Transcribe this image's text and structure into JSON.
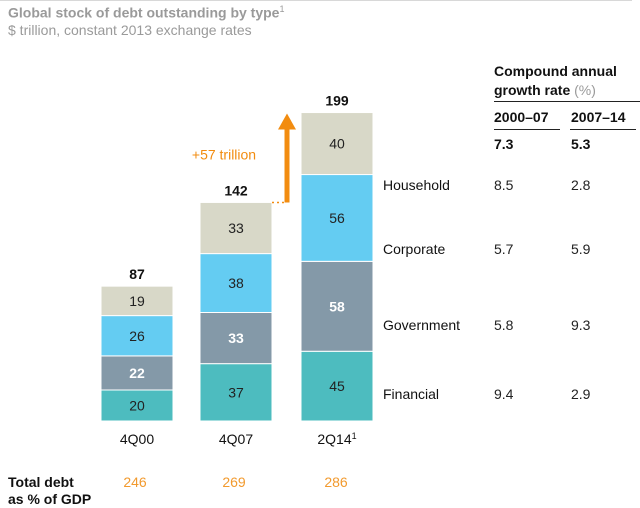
{
  "title": "Global stock of debt outstanding by type",
  "title_sup": "1",
  "subtitle": "$ trillion, constant 2013 exchange rates",
  "colors": {
    "Financial": "#4dbcbf",
    "Government": "#8499a8",
    "Corporate": "#64ccf2",
    "Household": "#d8d8c8",
    "arrow": "#f28c10",
    "gdp_value": "#f29a2e"
  },
  "chart_data": {
    "type": "bar",
    "stacked": true,
    "categories": [
      "4Q00",
      "4Q07",
      "2Q14"
    ],
    "category_superscripts": [
      "",
      "",
      "1"
    ],
    "series": [
      {
        "name": "Financial",
        "values": [
          20,
          37,
          45
        ]
      },
      {
        "name": "Government",
        "values": [
          22,
          33,
          58
        ]
      },
      {
        "name": "Corporate",
        "values": [
          26,
          38,
          56
        ]
      },
      {
        "name": "Household",
        "values": [
          19,
          33,
          40
        ]
      }
    ],
    "totals": [
      87,
      142,
      199
    ],
    "annotation": "+57 trillion"
  },
  "table": {
    "heading_line1": "Compound annual",
    "heading_line2": "growth rate",
    "heading_unit": "(%)",
    "columns": [
      "2000–07",
      "2007–14"
    ],
    "totals": [
      "7.3",
      "5.3"
    ],
    "rows": [
      {
        "label": "Household",
        "values": [
          "8.5",
          "2.8"
        ]
      },
      {
        "label": "Corporate",
        "values": [
          "5.7",
          "5.9"
        ]
      },
      {
        "label": "Government",
        "values": [
          "5.8",
          "9.3"
        ]
      },
      {
        "label": "Financial",
        "values": [
          "9.4",
          "2.9"
        ]
      }
    ]
  },
  "gdp": {
    "label_line1": "Total debt",
    "label_line2": "as % of GDP",
    "values": [
      "246",
      "269",
      "286"
    ]
  }
}
